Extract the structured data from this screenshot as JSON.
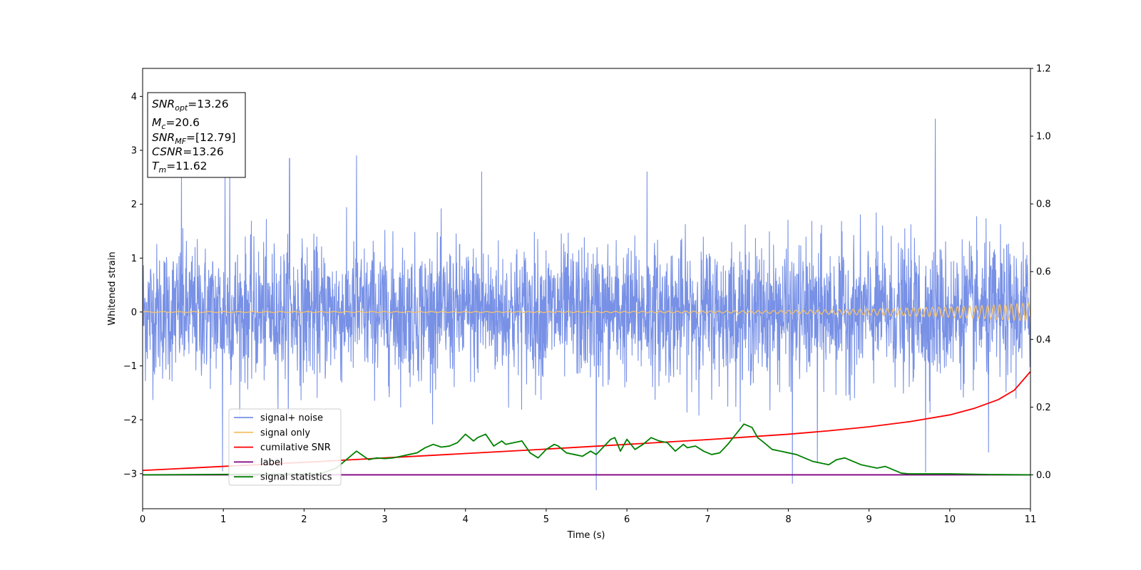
{
  "chart_data": {
    "type": "line",
    "xlabel": "Time (s)",
    "ylabel": "Whitened strain",
    "xlim": [
      0,
      11
    ],
    "ylim_left": [
      -3.65,
      4.52
    ],
    "ylim_right": [
      -0.1,
      1.2
    ],
    "xticks": [
      "0",
      "1",
      "2",
      "3",
      "4",
      "5",
      "6",
      "7",
      "8",
      "9",
      "10",
      "11"
    ],
    "yticks_left": [
      "−3",
      "−2",
      "−1",
      "0",
      "1",
      "2",
      "3",
      "4"
    ],
    "yticks_right": [
      "0.0",
      "0.2",
      "0.4",
      "0.6",
      "0.8",
      "1.0",
      "1.2"
    ],
    "legend_position": "lower-left",
    "grid": false,
    "info_box": {
      "position": "upper-left",
      "lines": [
        {
          "base": "SNR",
          "sub": "opt",
          "value": "=13.26"
        },
        {
          "base": "M",
          "sub": "c",
          "value": "=20.6"
        },
        {
          "base": "SNR",
          "sub": "MF",
          "value": "=[12.79]"
        },
        {
          "base": "CSNR",
          "sub": "",
          "value": "=13.26"
        },
        {
          "base": "T",
          "sub": "m",
          "value": "=11.62"
        }
      ]
    },
    "series": [
      {
        "name": "signal+ noise",
        "axis": "left",
        "color": "#7891e6",
        "description": "whitened noise envelope, band roughly from -1.5 to 1.7 with spikes",
        "spikes": [
          [
            0.48,
            2.6
          ],
          [
            1.02,
            2.55
          ],
          [
            1.08,
            2.6
          ],
          [
            1.82,
            2.85
          ],
          [
            2.65,
            2.9
          ],
          [
            4.2,
            2.6
          ],
          [
            6.25,
            2.6
          ],
          [
            9.82,
            3.58
          ],
          [
            0.99,
            -2.95
          ],
          [
            5.62,
            -3.3
          ],
          [
            8.05,
            -3.18
          ],
          [
            8.36,
            -2.8
          ],
          [
            9.7,
            -2.97
          ],
          [
            10.48,
            -2.6
          ]
        ]
      },
      {
        "name": "signal only",
        "axis": "left",
        "color": "#f5c26b",
        "description": "chirp with amplitude growing from ~0.01 to ~0.17 at t=11"
      },
      {
        "name": "cumilative SNR",
        "axis": "right",
        "color": "#ff0000",
        "x": [
          0,
          1,
          2,
          3,
          4,
          5,
          6,
          7,
          8,
          8.5,
          9,
          9.5,
          10,
          10.3,
          10.6,
          10.8,
          11
        ],
        "y": [
          0.013,
          0.025,
          0.037,
          0.05,
          0.063,
          0.076,
          0.09,
          0.104,
          0.12,
          0.13,
          0.142,
          0.157,
          0.177,
          0.196,
          0.222,
          0.25,
          0.305
        ]
      },
      {
        "name": "label",
        "axis": "right",
        "color": "#800080",
        "x": [
          0,
          11
        ],
        "y": [
          0.0,
          0.0
        ]
      },
      {
        "name": "signal statistics",
        "axis": "right",
        "color": "#008000",
        "x": [
          0,
          2.2,
          2.4,
          2.5,
          2.65,
          2.8,
          2.9,
          3.0,
          3.1,
          3.2,
          3.3,
          3.4,
          3.5,
          3.6,
          3.7,
          3.8,
          3.9,
          4.0,
          4.1,
          4.15,
          4.25,
          4.35,
          4.45,
          4.5,
          4.6,
          4.7,
          4.8,
          4.9,
          5.0,
          5.1,
          5.15,
          5.25,
          5.35,
          5.45,
          5.55,
          5.62,
          5.7,
          5.8,
          5.85,
          5.92,
          6.0,
          6.1,
          6.2,
          6.3,
          6.4,
          6.5,
          6.6,
          6.7,
          6.75,
          6.85,
          6.95,
          7.05,
          7.15,
          7.25,
          7.35,
          7.45,
          7.55,
          7.62,
          7.7,
          7.8,
          7.9,
          8.0,
          8.1,
          8.2,
          8.3,
          8.4,
          8.5,
          8.6,
          8.7,
          8.8,
          8.9,
          9.0,
          9.1,
          9.2,
          9.3,
          9.4,
          9.5,
          9.7,
          10.0,
          10.5,
          11.0
        ],
        "y": [
          0.0,
          0.003,
          0.02,
          0.04,
          0.07,
          0.045,
          0.05,
          0.048,
          0.05,
          0.055,
          0.06,
          0.065,
          0.08,
          0.09,
          0.082,
          0.085,
          0.095,
          0.12,
          0.1,
          0.11,
          0.12,
          0.085,
          0.1,
          0.09,
          0.095,
          0.1,
          0.065,
          0.05,
          0.075,
          0.09,
          0.085,
          0.065,
          0.06,
          0.055,
          0.07,
          0.06,
          0.08,
          0.105,
          0.11,
          0.07,
          0.105,
          0.075,
          0.09,
          0.11,
          0.1,
          0.095,
          0.07,
          0.09,
          0.08,
          0.085,
          0.07,
          0.06,
          0.065,
          0.09,
          0.12,
          0.15,
          0.14,
          0.11,
          0.095,
          0.075,
          0.07,
          0.065,
          0.06,
          0.05,
          0.04,
          0.035,
          0.03,
          0.045,
          0.05,
          0.04,
          0.03,
          0.025,
          0.02,
          0.025,
          0.015,
          0.005,
          0.003,
          0.003,
          0.003,
          0.001,
          0.0
        ]
      }
    ]
  },
  "colors": {
    "noise": "#7891e6",
    "signal": "#f5c26b",
    "cumulative": "#ff0000",
    "label": "#800080",
    "statistics": "#008000"
  }
}
